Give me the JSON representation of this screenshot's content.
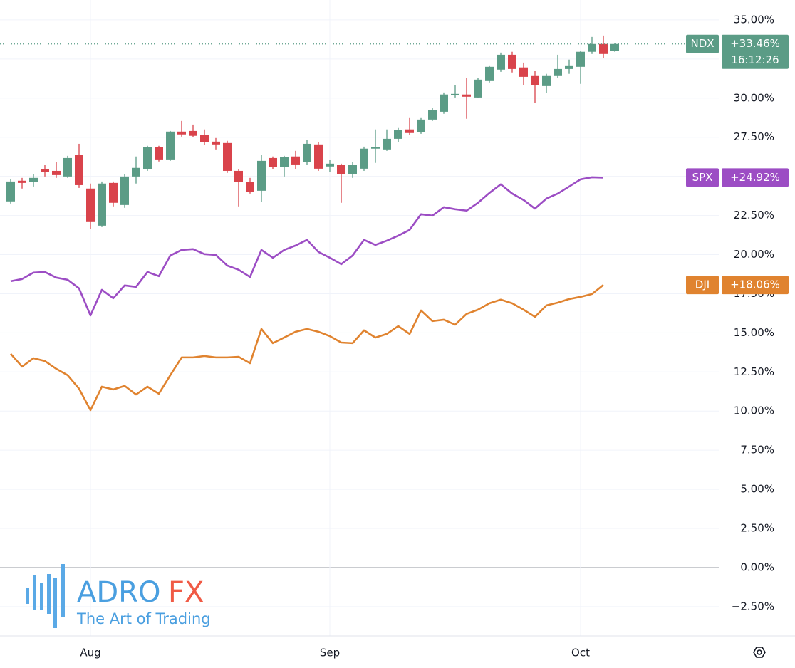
{
  "chart_data": {
    "type": "candlestick",
    "categories": [
      null,
      null,
      null,
      null,
      null,
      null,
      null,
      "Aug",
      null,
      null,
      null,
      null,
      null,
      null,
      null,
      null,
      null,
      null,
      null,
      null,
      null,
      null,
      null,
      null,
      null,
      null,
      null,
      null,
      "Sep",
      null,
      null,
      null,
      null,
      null,
      null,
      null,
      null,
      null,
      null,
      null,
      null,
      null,
      null,
      null,
      null,
      null,
      null,
      null,
      null,
      null,
      "Oct",
      null,
      null,
      null
    ],
    "ylim": [
      -4.37,
      36.27
    ],
    "yticks": [
      {
        "value": -2.5,
        "label": "−2.50%"
      },
      {
        "value": 0,
        "label": "0.00%"
      },
      {
        "value": 2.5,
        "label": "2.50%"
      },
      {
        "value": 5,
        "label": "5.00%"
      },
      {
        "value": 7.5,
        "label": "7.50%"
      },
      {
        "value": 10,
        "label": "10.00%"
      },
      {
        "value": 12.5,
        "label": "12.50%"
      },
      {
        "value": 15,
        "label": "15.00%"
      },
      {
        "value": 17.5,
        "label": "17.50%"
      },
      {
        "value": 20,
        "label": "20.00%"
      },
      {
        "value": 22.5,
        "label": "22.50%"
      },
      {
        "value": 25,
        "label": "25.00%"
      },
      {
        "value": 27.5,
        "label": "27.50%"
      },
      {
        "value": 30,
        "label": "30.00%"
      },
      {
        "value": 32.5,
        "label": "32.50%"
      },
      {
        "value": 35,
        "label": "35.00%"
      }
    ],
    "grid": true,
    "series": [
      {
        "name": "NDX",
        "type": "candlestick",
        "color": "#5b9c86",
        "color_down": "#d9434b",
        "last_value_label": "+33.46%",
        "countdown": "16:12:26",
        "open": [
          23.4,
          24.72,
          24.63,
          25.45,
          25.35,
          24.99,
          26.36,
          24.22,
          21.85,
          24.58,
          23.17,
          24.99,
          25.45,
          26.86,
          26.08,
          27.86,
          27.9,
          27.63,
          27.22,
          27.13,
          25.35,
          24.63,
          24.08,
          26.17,
          25.58,
          26.27,
          25.9,
          27.04,
          25.63,
          25.72,
          25.13,
          25.49,
          26.77,
          26.72,
          27.4,
          28.0,
          27.81,
          28.63,
          29.13,
          30.18,
          30.23,
          30.04,
          31.09,
          31.82,
          32.77,
          31.96,
          31.41,
          30.77,
          31.41,
          31.86,
          32.0,
          32.96,
          33.46,
          33.0
        ],
        "high": [
          24.81,
          24.9,
          25.13,
          25.72,
          25.9,
          26.31,
          27.08,
          24.54,
          24.67,
          24.67,
          25.13,
          26.27,
          26.95,
          26.95,
          27.9,
          28.54,
          28.31,
          28.0,
          27.45,
          27.27,
          25.45,
          24.9,
          26.36,
          26.27,
          26.31,
          26.63,
          27.31,
          27.18,
          26.04,
          25.81,
          25.9,
          26.9,
          28.0,
          28.0,
          28.09,
          28.77,
          28.77,
          29.36,
          30.36,
          30.82,
          31.27,
          31.27,
          32.09,
          32.91,
          32.96,
          32.27,
          31.73,
          31.55,
          32.77,
          32.46,
          33.0,
          33.91,
          34.0,
          33.5
        ],
        "low": [
          23.26,
          24.22,
          24.35,
          24.99,
          24.9,
          24.9,
          24.26,
          21.62,
          21.76,
          23.08,
          22.99,
          24.54,
          25.35,
          25.95,
          25.99,
          27.54,
          27.49,
          26.99,
          26.72,
          25.22,
          23.08,
          23.9,
          23.35,
          25.45,
          24.99,
          25.45,
          25.72,
          25.35,
          25.26,
          23.31,
          24.9,
          25.35,
          25.86,
          26.63,
          27.18,
          27.63,
          27.72,
          28.54,
          29.0,
          30.04,
          28.68,
          30.0,
          31.0,
          31.68,
          31.64,
          30.82,
          29.68,
          30.32,
          31.27,
          31.55,
          30.91,
          32.82,
          32.55,
          32.96
        ],
        "close": [
          24.67,
          24.58,
          24.9,
          25.26,
          25.08,
          26.17,
          24.44,
          22.08,
          24.54,
          23.31,
          24.99,
          25.54,
          26.86,
          26.08,
          27.86,
          27.68,
          27.59,
          27.18,
          27.04,
          25.35,
          24.63,
          23.99,
          25.99,
          25.58,
          26.22,
          25.76,
          27.08,
          25.49,
          25.81,
          25.13,
          25.72,
          26.77,
          26.86,
          27.4,
          27.95,
          27.77,
          28.63,
          29.22,
          30.23,
          30.27,
          30.09,
          31.18,
          32.0,
          32.77,
          31.86,
          31.36,
          30.82,
          31.41,
          31.86,
          32.09,
          32.96,
          33.46,
          32.82,
          33.46
        ]
      },
      {
        "name": "SPX",
        "type": "line",
        "color": "#9c4dc4",
        "last_value_label": "+24.92%",
        "values": [
          18.3,
          18.44,
          18.85,
          18.89,
          18.53,
          18.39,
          17.84,
          16.11,
          17.75,
          17.21,
          18.03,
          17.94,
          18.89,
          18.62,
          19.94,
          20.3,
          20.35,
          20.03,
          19.98,
          19.3,
          19.03,
          18.57,
          20.3,
          19.8,
          20.3,
          20.58,
          20.94,
          20.17,
          19.8,
          19.39,
          19.94,
          20.94,
          20.62,
          20.89,
          21.21,
          21.58,
          22.58,
          22.49,
          23.03,
          22.9,
          22.81,
          23.31,
          23.94,
          24.49,
          23.9,
          23.49,
          22.94,
          23.58,
          23.9,
          24.35,
          24.81,
          24.94,
          24.92,
          null
        ]
      },
      {
        "name": "DJI",
        "type": "line",
        "color": "#e0832f",
        "last_value_label": "+18.06%",
        "values": [
          13.66,
          12.84,
          13.38,
          13.2,
          12.7,
          12.29,
          11.43,
          10.06,
          11.56,
          11.38,
          11.61,
          11.06,
          11.56,
          11.11,
          12.29,
          13.43,
          13.43,
          13.52,
          13.43,
          13.43,
          13.47,
          13.06,
          15.25,
          14.34,
          14.7,
          15.07,
          15.25,
          15.07,
          14.79,
          14.38,
          14.34,
          15.16,
          14.7,
          14.93,
          15.43,
          14.93,
          16.43,
          15.75,
          15.84,
          15.52,
          16.21,
          16.48,
          16.89,
          17.12,
          16.89,
          16.48,
          16.02,
          16.75,
          16.93,
          17.16,
          17.3,
          17.48,
          18.06,
          null
        ]
      }
    ]
  },
  "watermark": {
    "brand": "ADRO",
    "brand_suffix": "FX",
    "tagline": "The Art of Trading"
  }
}
